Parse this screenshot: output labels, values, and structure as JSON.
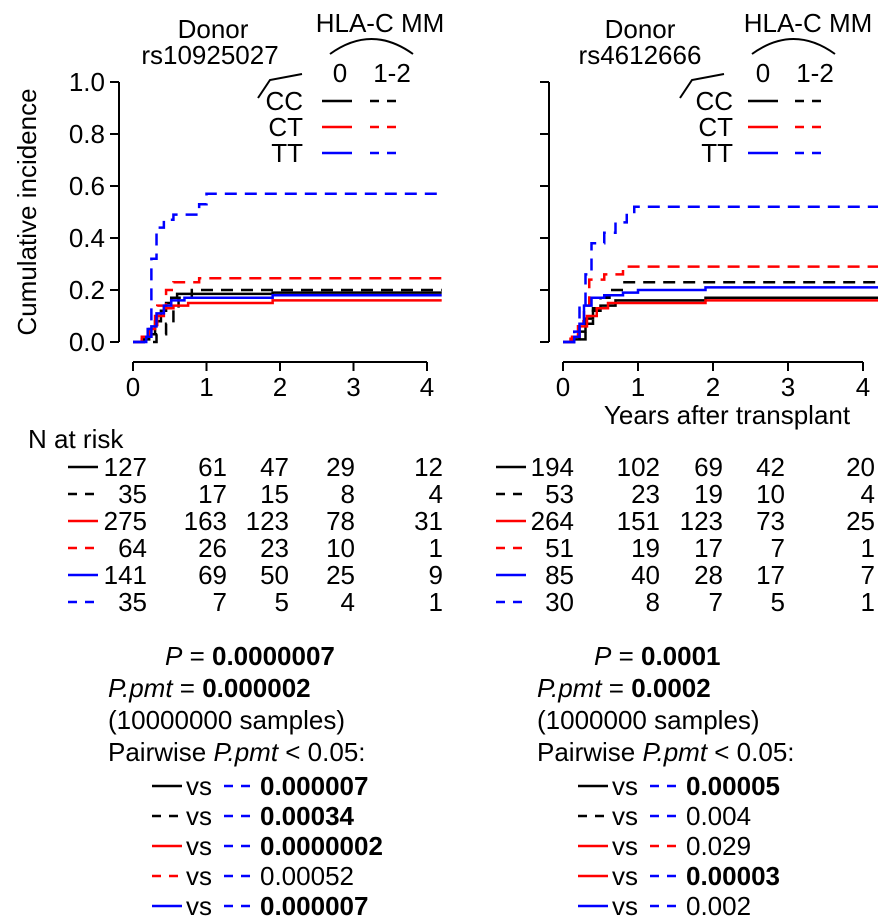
{
  "chart_data": [
    {
      "type": "step-line",
      "panel": "left",
      "header": {
        "donor": "Donor",
        "snp": "rs10925027",
        "hla": "HLA-C MM",
        "col0": "0",
        "col1": "1-2"
      },
      "ylabel": "Cumulative incidence",
      "xlabel": "",
      "xlim": [
        0,
        4.2
      ],
      "ylim": [
        0,
        1.0
      ],
      "xticks": [
        "0",
        "1",
        "2",
        "3",
        "4"
      ],
      "yticks": [
        "0.0",
        "0.2",
        "0.4",
        "0.6",
        "0.8",
        "1.0"
      ],
      "legend_labels": [
        "CC",
        "CT",
        "TT"
      ],
      "series": [
        {
          "genotype": "CC",
          "mm": "0",
          "color": "#000000",
          "dash": "solid",
          "points": [
            [
              0,
              0
            ],
            [
              0.12,
              0.01
            ],
            [
              0.22,
              0.03
            ],
            [
              0.3,
              0.08
            ],
            [
              0.38,
              0.12
            ],
            [
              0.45,
              0.15
            ],
            [
              0.52,
              0.17
            ],
            [
              0.6,
              0.185
            ],
            [
              1.9,
              0.19
            ],
            [
              4.2,
              0.19
            ]
          ]
        },
        {
          "genotype": "CC",
          "mm": "1-2",
          "color": "#000000",
          "dash": "dashed",
          "points": [
            [
              0,
              0
            ],
            [
              0.25,
              0
            ],
            [
              0.32,
              0.03
            ],
            [
              0.45,
              0.07
            ],
            [
              0.55,
              0.13
            ],
            [
              0.62,
              0.17
            ],
            [
              0.8,
              0.2
            ],
            [
              4.2,
              0.2
            ]
          ]
        },
        {
          "genotype": "CT",
          "mm": "0",
          "color": "#ff0000",
          "dash": "solid",
          "points": [
            [
              0,
              0
            ],
            [
              0.12,
              0.02
            ],
            [
              0.22,
              0.05
            ],
            [
              0.3,
              0.1
            ],
            [
              0.42,
              0.13
            ],
            [
              0.55,
              0.14
            ],
            [
              0.75,
              0.15
            ],
            [
              1.9,
              0.16
            ],
            [
              4.2,
              0.16
            ]
          ]
        },
        {
          "genotype": "CT",
          "mm": "1-2",
          "color": "#ff0000",
          "dash": "dashed",
          "points": [
            [
              0,
              0
            ],
            [
              0.15,
              0.02
            ],
            [
              0.25,
              0.06
            ],
            [
              0.33,
              0.14
            ],
            [
              0.45,
              0.2
            ],
            [
              0.55,
              0.23
            ],
            [
              0.9,
              0.245
            ],
            [
              4.2,
              0.245
            ]
          ]
        },
        {
          "genotype": "TT",
          "mm": "0",
          "color": "#0000ff",
          "dash": "solid",
          "points": [
            [
              0,
              0
            ],
            [
              0.18,
              0.02
            ],
            [
              0.25,
              0.06
            ],
            [
              0.32,
              0.11
            ],
            [
              0.42,
              0.14
            ],
            [
              0.52,
              0.16
            ],
            [
              0.7,
              0.17
            ],
            [
              1.9,
              0.18
            ],
            [
              4.2,
              0.18
            ]
          ]
        },
        {
          "genotype": "TT",
          "mm": "1-2",
          "color": "#0000ff",
          "dash": "dashed",
          "points": [
            [
              0,
              0
            ],
            [
              0.2,
              0.05
            ],
            [
              0.25,
              0.32
            ],
            [
              0.32,
              0.44
            ],
            [
              0.42,
              0.47
            ],
            [
              0.55,
              0.49
            ],
            [
              0.9,
              0.53
            ],
            [
              1.0,
              0.57
            ],
            [
              4.2,
              0.57
            ]
          ]
        }
      ],
      "risk_title": "N at risk",
      "risk_table": [
        [
          "127",
          "61",
          "47",
          "29",
          "12"
        ],
        [
          "35",
          "17",
          "15",
          "8",
          "4"
        ],
        [
          "275",
          "163",
          "123",
          "78",
          "31"
        ],
        [
          "64",
          "26",
          "23",
          "10",
          "1"
        ],
        [
          "141",
          "69",
          "50",
          "25",
          "9"
        ],
        [
          "35",
          "7",
          "5",
          "4",
          "1"
        ]
      ],
      "stats": {
        "p_label": "P",
        "p_value": "0.0000007",
        "ppmt_label": "P.pmt",
        "ppmt_value": "0.000002",
        "samples": "(10000000 samples)",
        "pairwise_prefix": "Pairwise ",
        "pairwise_suffix": " < 0.05:",
        "vs": "vs"
      },
      "pairwise": [
        {
          "left_color": "#000000",
          "left_dash": "solid",
          "right_color": "#0000ff",
          "right_dash": "dashed",
          "value": "0.000007",
          "bold": true
        },
        {
          "left_color": "#000000",
          "left_dash": "dashed",
          "right_color": "#0000ff",
          "right_dash": "dashed",
          "value": "0.00034",
          "bold": true
        },
        {
          "left_color": "#ff0000",
          "left_dash": "solid",
          "right_color": "#0000ff",
          "right_dash": "dashed",
          "value": "0.0000002",
          "bold": true
        },
        {
          "left_color": "#ff0000",
          "left_dash": "dashed",
          "right_color": "#0000ff",
          "right_dash": "dashed",
          "value": "0.00052",
          "bold": false
        },
        {
          "left_color": "#0000ff",
          "left_dash": "solid",
          "right_color": "#0000ff",
          "right_dash": "dashed",
          "value": "0.000007",
          "bold": true
        }
      ]
    },
    {
      "type": "step-line",
      "panel": "right",
      "header": {
        "donor": "Donor",
        "snp": "rs4612666",
        "hla": "HLA-C MM",
        "col0": "0",
        "col1": "1-2"
      },
      "ylabel": "",
      "xlabel": "Years after transplant",
      "xlim": [
        0,
        4.2
      ],
      "ylim": [
        0,
        1.0
      ],
      "xticks": [
        "0",
        "1",
        "2",
        "3",
        "4"
      ],
      "yticks": [],
      "legend_labels": [
        "CC",
        "CT",
        "TT"
      ],
      "series": [
        {
          "genotype": "CC",
          "mm": "0",
          "color": "#000000",
          "dash": "solid",
          "points": [
            [
              0,
              0
            ],
            [
              0.15,
              0.01
            ],
            [
              0.22,
              0.04
            ],
            [
              0.3,
              0.09
            ],
            [
              0.4,
              0.12
            ],
            [
              0.5,
              0.14
            ],
            [
              0.7,
              0.16
            ],
            [
              1.9,
              0.17
            ],
            [
              4.2,
              0.17
            ]
          ]
        },
        {
          "genotype": "CC",
          "mm": "1-2",
          "color": "#000000",
          "dash": "dashed",
          "points": [
            [
              0,
              0
            ],
            [
              0.2,
              0.01
            ],
            [
              0.3,
              0.07
            ],
            [
              0.4,
              0.13
            ],
            [
              0.5,
              0.17
            ],
            [
              0.62,
              0.2
            ],
            [
              0.8,
              0.23
            ],
            [
              4.2,
              0.23
            ]
          ]
        },
        {
          "genotype": "CT",
          "mm": "0",
          "color": "#ff0000",
          "dash": "solid",
          "points": [
            [
              0,
              0
            ],
            [
              0.12,
              0.02
            ],
            [
              0.22,
              0.06
            ],
            [
              0.32,
              0.1
            ],
            [
              0.45,
              0.13
            ],
            [
              0.6,
              0.15
            ],
            [
              1.9,
              0.16
            ],
            [
              4.2,
              0.16
            ]
          ]
        },
        {
          "genotype": "CT",
          "mm": "1-2",
          "color": "#ff0000",
          "dash": "dashed",
          "points": [
            [
              0,
              0
            ],
            [
              0.1,
              0.02
            ],
            [
              0.2,
              0.08
            ],
            [
              0.28,
              0.14
            ],
            [
              0.35,
              0.24
            ],
            [
              0.55,
              0.26
            ],
            [
              0.8,
              0.29
            ],
            [
              4.2,
              0.29
            ]
          ]
        },
        {
          "genotype": "TT",
          "mm": "0",
          "color": "#0000ff",
          "dash": "solid",
          "points": [
            [
              0,
              0
            ],
            [
              0.15,
              0.02
            ],
            [
              0.22,
              0.07
            ],
            [
              0.28,
              0.14
            ],
            [
              0.38,
              0.17
            ],
            [
              0.55,
              0.18
            ],
            [
              0.8,
              0.19
            ],
            [
              1.0,
              0.2
            ],
            [
              1.9,
              0.21
            ],
            [
              4.2,
              0.21
            ]
          ]
        },
        {
          "genotype": "TT",
          "mm": "1-2",
          "color": "#0000ff",
          "dash": "dashed",
          "points": [
            [
              0,
              0
            ],
            [
              0.15,
              0.04
            ],
            [
              0.22,
              0.14
            ],
            [
              0.3,
              0.26
            ],
            [
              0.38,
              0.38
            ],
            [
              0.55,
              0.42
            ],
            [
              0.7,
              0.46
            ],
            [
              0.85,
              0.5
            ],
            [
              0.95,
              0.52
            ],
            [
              4.2,
              0.52
            ]
          ]
        }
      ],
      "risk_title": "",
      "risk_table": [
        [
          "194",
          "102",
          "69",
          "42",
          "20"
        ],
        [
          "53",
          "23",
          "19",
          "10",
          "4"
        ],
        [
          "264",
          "151",
          "123",
          "73",
          "25"
        ],
        [
          "51",
          "19",
          "17",
          "7",
          "1"
        ],
        [
          "85",
          "40",
          "28",
          "17",
          "7"
        ],
        [
          "30",
          "8",
          "7",
          "5",
          "1"
        ]
      ],
      "stats": {
        "p_label": "P",
        "p_value": "0.0001",
        "ppmt_label": "P.pmt",
        "ppmt_value": "0.0002",
        "samples": "(1000000 samples)",
        "pairwise_prefix": "Pairwise ",
        "pairwise_suffix": " < 0.05:",
        "vs": "vs"
      },
      "pairwise": [
        {
          "left_color": "#000000",
          "left_dash": "solid",
          "right_color": "#0000ff",
          "right_dash": "dashed",
          "value": "0.00005",
          "bold": true
        },
        {
          "left_color": "#000000",
          "left_dash": "dashed",
          "right_color": "#0000ff",
          "right_dash": "dashed",
          "value": "0.004",
          "bold": false
        },
        {
          "left_color": "#ff0000",
          "left_dash": "solid",
          "right_color": "#ff0000",
          "right_dash": "dashed",
          "value": "0.029",
          "bold": false
        },
        {
          "left_color": "#ff0000",
          "left_dash": "solid",
          "right_color": "#0000ff",
          "right_dash": "dashed",
          "value": "0.00003",
          "bold": true
        },
        {
          "left_color": "#0000ff",
          "left_dash": "solid",
          "right_color": "#0000ff",
          "right_dash": "dashed",
          "value": "0.002",
          "bold": false
        }
      ]
    }
  ]
}
